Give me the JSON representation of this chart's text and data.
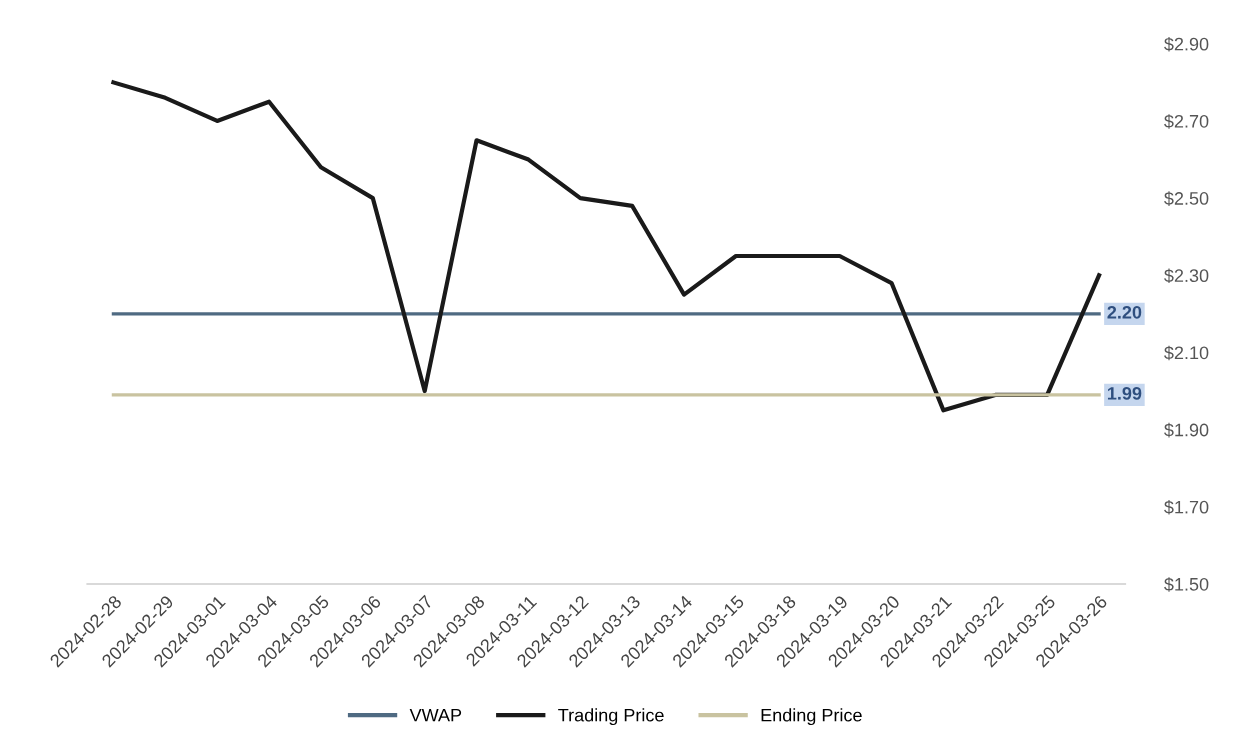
{
  "chart_data": {
    "type": "line",
    "categories": [
      "2024-02-28",
      "2024-02-29",
      "2024-03-01",
      "2024-03-04",
      "2024-03-05",
      "2024-03-06",
      "2024-03-07",
      "2024-03-08",
      "2024-03-11",
      "2024-03-12",
      "2024-03-13",
      "2024-03-14",
      "2024-03-15",
      "2024-03-18",
      "2024-03-19",
      "2024-03-20",
      "2024-03-21",
      "2024-03-22",
      "2024-03-25",
      "2024-03-26"
    ],
    "series": [
      {
        "name": "VWAP",
        "color": "#4f6a82",
        "values": [
          2.2,
          2.2,
          2.2,
          2.2,
          2.2,
          2.2,
          2.2,
          2.2,
          2.2,
          2.2,
          2.2,
          2.2,
          2.2,
          2.2,
          2.2,
          2.2,
          2.2,
          2.2,
          2.2,
          2.2
        ],
        "value_labels": [
          null,
          null,
          null,
          null,
          null,
          null,
          null,
          null,
          null,
          null,
          null,
          null,
          null,
          null,
          null,
          null,
          null,
          null,
          null,
          "2.20"
        ]
      },
      {
        "name": "Trading Price",
        "color": "#1a1a1a",
        "values": [
          2.8,
          2.76,
          2.7,
          2.75,
          2.58,
          2.5,
          2.0,
          2.65,
          2.6,
          2.5,
          2.48,
          2.25,
          2.35,
          2.35,
          2.35,
          2.28,
          1.95,
          1.99,
          1.99,
          2.3
        ]
      },
      {
        "name": "Ending Price",
        "color": "#c9c3a0",
        "values": [
          1.99,
          1.99,
          1.99,
          1.99,
          1.99,
          1.99,
          1.99,
          1.99,
          1.99,
          1.99,
          1.99,
          1.99,
          1.99,
          1.99,
          1.99,
          1.99,
          1.99,
          1.99,
          1.99,
          1.99
        ],
        "value_labels": [
          null,
          null,
          null,
          null,
          null,
          null,
          null,
          null,
          null,
          null,
          null,
          null,
          null,
          null,
          null,
          null,
          null,
          null,
          null,
          "1.99"
        ]
      }
    ],
    "ylim": [
      1.5,
      2.9
    ],
    "yticks": [
      {
        "value": 1.5,
        "label": "$1.50"
      },
      {
        "value": 1.7,
        "label": "$1.70"
      },
      {
        "value": 1.9,
        "label": "$1.90"
      },
      {
        "value": 2.1,
        "label": "$2.10"
      },
      {
        "value": 2.3,
        "label": "$2.30"
      },
      {
        "value": 2.5,
        "label": "$2.50"
      },
      {
        "value": 2.7,
        "label": "$2.70"
      },
      {
        "value": 2.9,
        "label": "$2.90"
      }
    ],
    "grid": false,
    "legend": "bottom",
    "marker": "none",
    "line_style": "solid"
  }
}
